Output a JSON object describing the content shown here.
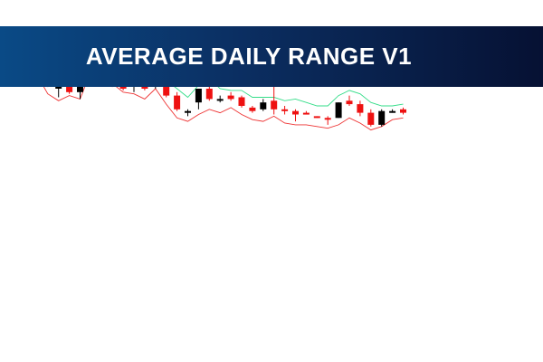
{
  "banner": {
    "title": "AVERAGE DAILY RANGE V1",
    "gradient_colors": [
      "#0a4a86",
      "#061133"
    ],
    "text_color": "#ffffff"
  },
  "chart_data": {
    "type": "candlestick",
    "title": "",
    "xlabel": "",
    "ylabel": "",
    "ylim": [
      0,
      100
    ],
    "grid": false,
    "legend": "none",
    "colors": {
      "bull": "#000000",
      "bear": "#ee1111",
      "upper_band": "#33dd88",
      "lower_band": "#ee3333"
    },
    "candles": [
      {
        "o": 93,
        "h": 95,
        "l": 92,
        "c": 94
      },
      {
        "o": 94,
        "h": 95,
        "l": 91,
        "c": 91
      },
      {
        "o": 92,
        "h": 93,
        "l": 81,
        "c": 82
      },
      {
        "o": 80,
        "h": 95,
        "l": 75,
        "c": 95
      },
      {
        "o": 95,
        "h": 95,
        "l": 77,
        "c": 78
      },
      {
        "o": 78,
        "h": 95,
        "l": 74,
        "c": 95
      },
      {
        "o": 94,
        "h": 95,
        "l": 92,
        "c": 93
      },
      {
        "o": 93,
        "h": 95,
        "l": 90,
        "c": 94
      },
      {
        "o": 91,
        "h": 93,
        "l": 81,
        "c": 82
      },
      {
        "o": 88,
        "h": 90,
        "l": 79,
        "c": 80
      },
      {
        "o": 82,
        "h": 86,
        "l": 78,
        "c": 85
      },
      {
        "o": 85,
        "h": 88,
        "l": 79,
        "c": 80
      },
      {
        "o": 82,
        "h": 90,
        "l": 80,
        "c": 89
      },
      {
        "o": 87,
        "h": 88,
        "l": 75,
        "c": 76
      },
      {
        "o": 76,
        "h": 78,
        "l": 67,
        "c": 68
      },
      {
        "o": 67,
        "h": 68,
        "l": 64,
        "c": 67
      },
      {
        "o": 72,
        "h": 80,
        "l": 68,
        "c": 80
      },
      {
        "o": 80,
        "h": 82,
        "l": 73,
        "c": 74
      },
      {
        "o": 74,
        "h": 76,
        "l": 72,
        "c": 74
      },
      {
        "o": 76,
        "h": 78,
        "l": 73,
        "c": 74
      },
      {
        "o": 75,
        "h": 76,
        "l": 69,
        "c": 70
      },
      {
        "o": 69,
        "h": 70,
        "l": 66,
        "c": 67
      },
      {
        "o": 68,
        "h": 74,
        "l": 67,
        "c": 72
      },
      {
        "o": 73,
        "h": 88,
        "l": 65,
        "c": 68
      },
      {
        "o": 68,
        "h": 70,
        "l": 65,
        "c": 67
      },
      {
        "o": 67,
        "h": 68,
        "l": 61,
        "c": 65
      },
      {
        "o": 66,
        "h": 67,
        "l": 65,
        "c": 65
      },
      {
        "o": 64,
        "h": 64,
        "l": 63,
        "c": 63
      },
      {
        "o": 63,
        "h": 64,
        "l": 59,
        "c": 62
      },
      {
        "o": 63,
        "h": 72,
        "l": 63,
        "c": 72
      },
      {
        "o": 73,
        "h": 76,
        "l": 70,
        "c": 71
      },
      {
        "o": 71,
        "h": 73,
        "l": 64,
        "c": 66
      },
      {
        "o": 66,
        "h": 68,
        "l": 58,
        "c": 59
      },
      {
        "o": 59,
        "h": 68,
        "l": 58,
        "c": 67
      },
      {
        "o": 67,
        "h": 68,
        "l": 66,
        "c": 67
      },
      {
        "o": 68,
        "h": 69,
        "l": 65,
        "c": 66
      }
    ],
    "upper_band": [
      97,
      96,
      90,
      96,
      96,
      97,
      96,
      96,
      94,
      90,
      91,
      87,
      90,
      85,
      80,
      75,
      82,
      86,
      80,
      79,
      79,
      75,
      75,
      75,
      73,
      74,
      72,
      70,
      70,
      76,
      79,
      77,
      72,
      70,
      70,
      71
    ],
    "lower_band": [
      89,
      88,
      77,
      73,
      76,
      74,
      90,
      89,
      83,
      78,
      77,
      74,
      80,
      71,
      63,
      61,
      65,
      68,
      66,
      69,
      65,
      62,
      61,
      64,
      60,
      59,
      59,
      58,
      57,
      59,
      63,
      60,
      56,
      58,
      62,
      63
    ]
  }
}
